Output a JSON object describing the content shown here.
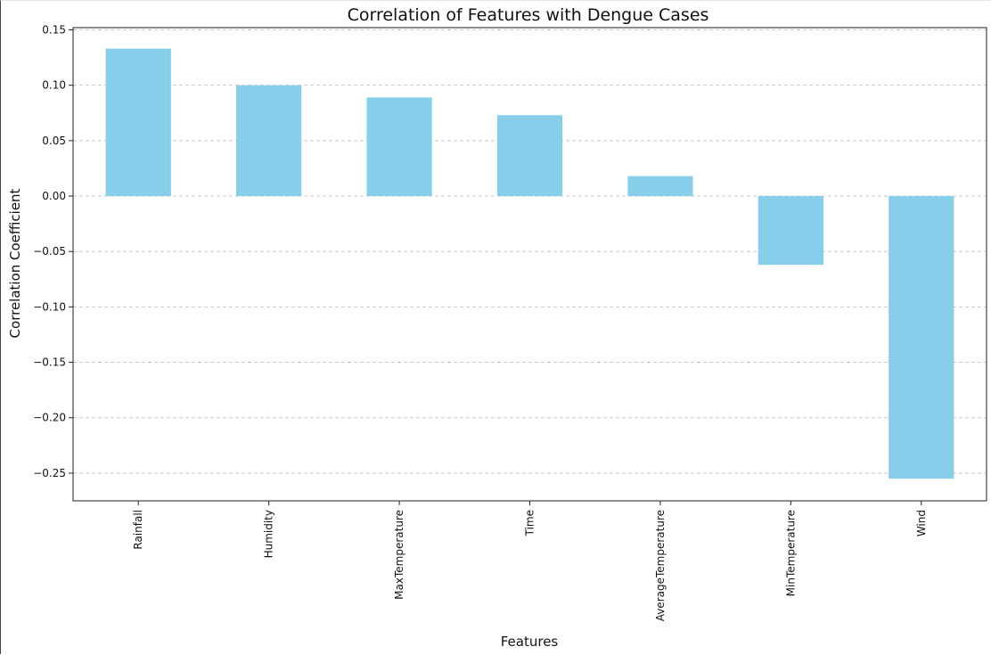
{
  "chart_data": {
    "type": "bar",
    "title": "Correlation of Features with Dengue Cases",
    "xlabel": "Features",
    "ylabel": "Correlation Coefficient",
    "categories": [
      "Rainfall",
      "Humidity",
      "MaxTemperature",
      "Time",
      "AverageTemperature",
      "MinTemperature",
      "Wind"
    ],
    "values": [
      0.133,
      0.1,
      0.089,
      0.073,
      0.018,
      -0.062,
      -0.255
    ],
    "ylim": [
      -0.275,
      0.152
    ],
    "yticks": [
      0.15,
      0.1,
      0.05,
      0.0,
      -0.05,
      -0.1,
      -0.15,
      -0.2,
      -0.25
    ],
    "ytick_labels": [
      "0.15",
      "0.10",
      "0.05",
      "0.00",
      "−0.05",
      "−0.10",
      "−0.15",
      "−0.20",
      "−0.25"
    ],
    "grid": "y-dashed",
    "bar_color": "#87ceeb",
    "grid_color": "#c8c8c8"
  }
}
